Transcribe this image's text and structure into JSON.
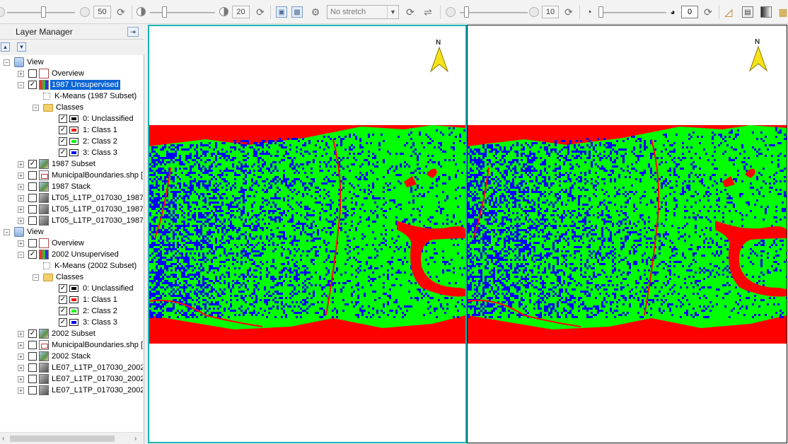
{
  "toolbar": {
    "brightness_value": "50",
    "contrast_value": "20",
    "stretch_select": "No stretch",
    "sharpen_value": "10",
    "transparency_value": "0"
  },
  "layer_manager": {
    "title": "Layer Manager",
    "tree": [
      {
        "label": "View",
        "icon": "view-icon",
        "level": 0,
        "expanded": true
      },
      {
        "label": "Overview",
        "icon": "overview-icon",
        "level": 1,
        "checked": false
      },
      {
        "label": "1987 Unsupervised",
        "icon": "classification-icon",
        "level": 1,
        "checked": true,
        "selected": true,
        "expanded": true
      },
      {
        "label": "K-Means (1987 Subset)",
        "icon": "kmeans-icon",
        "level": 2
      },
      {
        "label": "Classes",
        "icon": "folder-icon",
        "level": 2,
        "expanded": true
      },
      {
        "label": "0: Unclassified",
        "level": 3,
        "checked": true,
        "color": "#000000"
      },
      {
        "label": "1: Class 1",
        "level": 3,
        "checked": true,
        "color": "#ff0000"
      },
      {
        "label": "2: Class 2",
        "level": 3,
        "checked": true,
        "color": "#00ff00"
      },
      {
        "label": "3: Class 3",
        "level": 3,
        "checked": true,
        "color": "#0000ff"
      },
      {
        "label": "1987 Subset",
        "icon": "raster-icon",
        "level": 1,
        "checked": true
      },
      {
        "label": "MunicipalBoundaries.shp [",
        "icon": "shapefile-icon",
        "level": 1,
        "checked": false
      },
      {
        "label": "1987 Stack",
        "icon": "raster-icon",
        "level": 1,
        "checked": false
      },
      {
        "label": "LT05_L1TP_017030_1987",
        "icon": "grayscale-icon",
        "level": 1,
        "checked": false
      },
      {
        "label": "LT05_L1TP_017030_1987",
        "icon": "grayscale-icon",
        "level": 1,
        "checked": false
      },
      {
        "label": "LT05_L1TP_017030_1987",
        "icon": "grayscale-icon",
        "level": 1,
        "checked": false
      },
      {
        "label": "View",
        "icon": "view-icon",
        "level": 0,
        "expanded": true
      },
      {
        "label": "Overview",
        "icon": "overview-icon",
        "level": 1,
        "checked": false
      },
      {
        "label": "2002 Unsupervised",
        "icon": "classification-icon",
        "level": 1,
        "checked": true,
        "expanded": true
      },
      {
        "label": "K-Means (2002 Subset)",
        "icon": "kmeans-icon",
        "level": 2
      },
      {
        "label": "Classes",
        "icon": "folder-icon",
        "level": 2,
        "expanded": true
      },
      {
        "label": "0: Unclassified",
        "level": 3,
        "checked": true,
        "color": "#000000"
      },
      {
        "label": "1: Class 1",
        "level": 3,
        "checked": true,
        "color": "#ff0000"
      },
      {
        "label": "2: Class 2",
        "level": 3,
        "checked": true,
        "color": "#00ff00"
      },
      {
        "label": "3: Class 3",
        "level": 3,
        "checked": true,
        "color": "#0000ff"
      },
      {
        "label": "2002 Subset",
        "icon": "raster-icon",
        "level": 1,
        "checked": true
      },
      {
        "label": "MunicipalBoundaries.shp [",
        "icon": "shapefile-icon",
        "level": 1,
        "checked": false
      },
      {
        "label": "2002 Stack",
        "icon": "raster-icon",
        "level": 1,
        "checked": false
      },
      {
        "label": "LE07_L1TP_017030_2002",
        "icon": "grayscale-icon",
        "level": 1,
        "checked": false
      },
      {
        "label": "LE07_L1TP_017030_2002",
        "icon": "grayscale-icon",
        "level": 1,
        "checked": false
      },
      {
        "label": "LE07_L1TP_017030_2002",
        "icon": "grayscale-icon",
        "level": 1,
        "checked": false
      }
    ]
  },
  "views": [
    {
      "north_label": "N",
      "active": true
    },
    {
      "north_label": "N",
      "active": false
    }
  ],
  "colors": {
    "active_view_border": "#19b3b3",
    "selection": "#0a64d4",
    "class_red": "#ff0000",
    "class_green": "#00ff00",
    "class_blue": "#0000ff"
  }
}
